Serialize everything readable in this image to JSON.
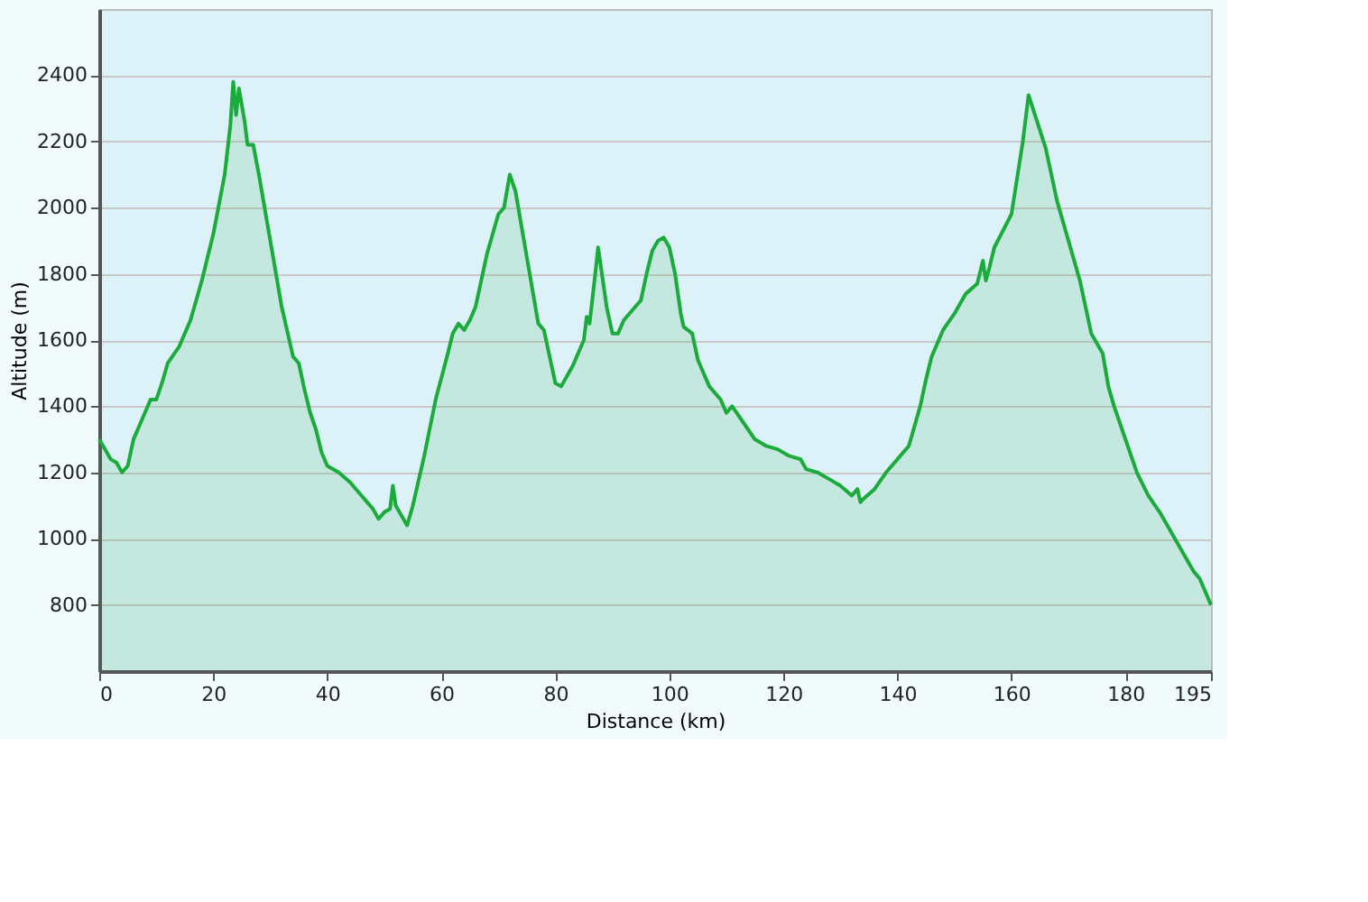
{
  "chart_data": {
    "type": "area",
    "xlabel": "Distance  (km)",
    "ylabel": "Altitude (m)",
    "xlim": [
      0,
      195
    ],
    "ylim": [
      600,
      2600
    ],
    "xticks": [
      0,
      20,
      40,
      60,
      80,
      100,
      120,
      140,
      160,
      180,
      195
    ],
    "yticks": [
      800,
      1000,
      1200,
      1400,
      1600,
      1800,
      2000,
      2200,
      2400
    ],
    "grid": "y",
    "series": [
      {
        "color": "#1aab3a",
        "x": [
          0,
          1,
          2,
          3,
          4,
          5,
          6,
          8,
          9,
          10,
          11,
          12,
          14,
          16,
          18,
          20,
          22,
          23,
          23.5,
          24,
          24.5,
          25.5,
          26,
          27,
          28,
          30,
          32,
          34,
          35,
          36,
          37,
          38,
          39,
          40,
          42,
          44,
          46,
          48,
          49,
          50,
          51,
          51.5,
          52,
          53,
          54,
          55,
          57,
          59,
          61,
          62,
          63,
          64,
          65,
          66,
          68,
          70,
          71,
          72,
          73,
          75,
          77,
          78,
          79,
          80,
          81,
          83,
          85,
          85.5,
          86,
          87,
          87.5,
          88.5,
          89,
          90,
          91,
          92,
          94,
          95,
          96,
          97,
          98,
          99,
          100,
          101,
          102,
          102.5,
          104,
          105,
          106,
          107,
          109,
          110,
          111,
          113,
          115,
          117,
          119,
          121,
          123,
          124,
          126,
          128,
          130,
          132,
          133,
          133.5,
          134,
          136,
          138,
          140,
          142,
          143,
          144,
          145,
          146,
          148,
          150,
          152,
          154,
          155,
          155.5,
          156,
          157,
          160,
          162,
          163,
          166,
          168,
          170,
          172,
          174,
          176,
          177,
          178,
          180,
          182,
          184,
          186,
          188,
          190,
          192,
          193,
          195
        ],
        "values": [
          1300,
          1270,
          1240,
          1230,
          1200,
          1220,
          1300,
          1380,
          1420,
          1420,
          1470,
          1530,
          1580,
          1660,
          1780,
          1920,
          2100,
          2250,
          2380,
          2280,
          2360,
          2260,
          2190,
          2190,
          2100,
          1900,
          1700,
          1550,
          1530,
          1450,
          1380,
          1330,
          1260,
          1220,
          1200,
          1170,
          1130,
          1090,
          1060,
          1080,
          1090,
          1160,
          1100,
          1070,
          1040,
          1100,
          1250,
          1420,
          1550,
          1620,
          1650,
          1630,
          1660,
          1700,
          1860,
          1980,
          2000,
          2100,
          2050,
          1850,
          1650,
          1630,
          1550,
          1470,
          1460,
          1520,
          1600,
          1670,
          1650,
          1800,
          1880,
          1760,
          1700,
          1620,
          1620,
          1660,
          1700,
          1720,
          1800,
          1870,
          1900,
          1910,
          1880,
          1800,
          1680,
          1640,
          1620,
          1540,
          1500,
          1460,
          1420,
          1380,
          1400,
          1350,
          1300,
          1280,
          1270,
          1250,
          1240,
          1210,
          1200,
          1180,
          1160,
          1130,
          1150,
          1110,
          1120,
          1150,
          1200,
          1240,
          1280,
          1340,
          1400,
          1480,
          1550,
          1630,
          1680,
          1740,
          1770,
          1840,
          1780,
          1810,
          1880,
          1980,
          2200,
          2340,
          2180,
          2020,
          1900,
          1780,
          1620,
          1560,
          1460,
          1400,
          1300,
          1200,
          1130,
          1080,
          1020,
          960,
          900,
          880,
          800
        ]
      }
    ]
  }
}
